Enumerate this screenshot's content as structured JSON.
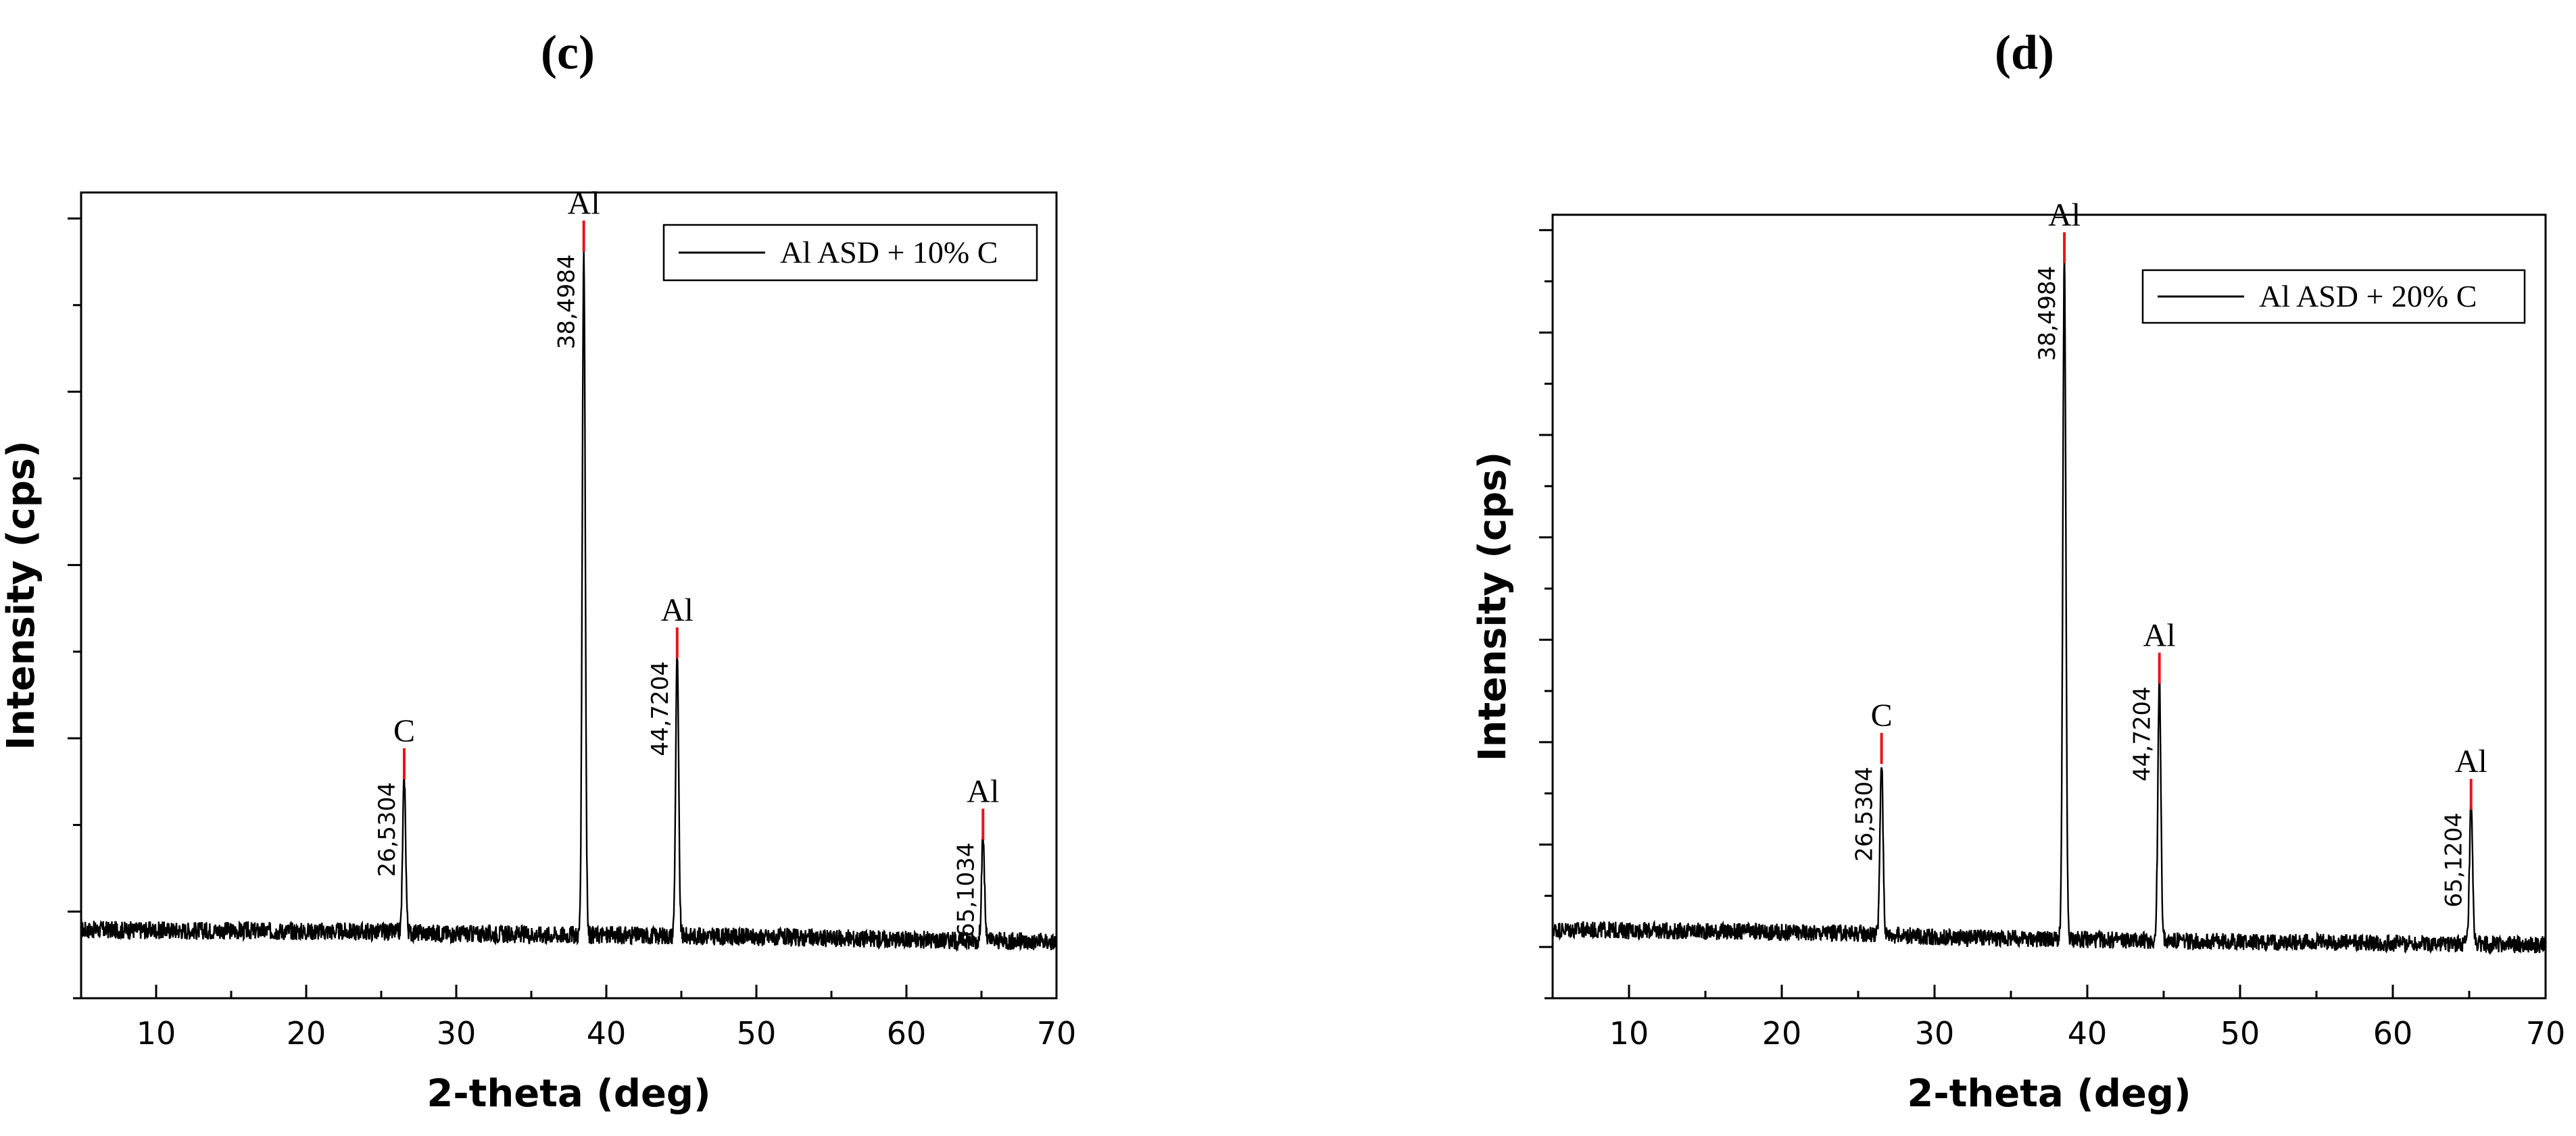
{
  "chart_data": [
    {
      "type": "line",
      "panel_label": "(c)",
      "xlabel": "2-theta (deg)",
      "ylabel": "Intensity (cps)",
      "xlim": [
        5,
        70
      ],
      "x_ticks": [
        10,
        20,
        30,
        40,
        50,
        60,
        70
      ],
      "y_ticks_labeled": false,
      "legend": {
        "position": "top-right",
        "entries": [
          "Al ASD + 10% C"
        ]
      },
      "series": [
        {
          "name": "Al ASD + 10% C",
          "baseline": [
            [
              5,
              0.17
            ],
            [
              25,
              0.165
            ],
            [
              30,
              0.16
            ],
            [
              45,
              0.155
            ],
            [
              70,
              0.14
            ]
          ],
          "peaks": [
            {
              "x": 26.5304,
              "height": 0.55,
              "phase": "C",
              "label": "26,5304"
            },
            {
              "x": 38.4984,
              "height": 1.86,
              "phase": "Al",
              "label": "38,4984"
            },
            {
              "x": 44.7204,
              "height": 0.85,
              "phase": "Al",
              "label": "44,7204"
            },
            {
              "x": 65.1034,
              "height": 0.4,
              "phase": "Al",
              "label": "65,1034"
            }
          ]
        }
      ],
      "peak_marker_color": "#e8141b"
    },
    {
      "type": "line",
      "panel_label": "(d)",
      "xlabel": "2-theta (deg)",
      "ylabel": "Intensity (cps)",
      "xlim": [
        5,
        70
      ],
      "x_ticks": [
        10,
        20,
        30,
        40,
        50,
        60,
        70
      ],
      "y_ticks_labeled": false,
      "legend": {
        "position": "top-right",
        "entries": [
          "Al ASD + 20% C"
        ]
      },
      "series": [
        {
          "name": "Al ASD + 20% C",
          "baseline": [
            [
              5,
              0.18
            ],
            [
              25,
              0.17
            ],
            [
              30,
              0.16
            ],
            [
              45,
              0.15
            ],
            [
              70,
              0.14
            ]
          ],
          "peaks": [
            {
              "x": 26.5304,
              "height": 0.62,
              "phase": "C",
              "label": "26,5304"
            },
            {
              "x": 38.4984,
              "height": 1.93,
              "phase": "Al",
              "label": "38,4984"
            },
            {
              "x": 44.7204,
              "height": 0.83,
              "phase": "Al",
              "label": "44,7204"
            },
            {
              "x": 65.1204,
              "height": 0.5,
              "phase": "Al",
              "label": "65,1204"
            }
          ]
        }
      ],
      "peak_marker_color": "#e8141b"
    }
  ]
}
